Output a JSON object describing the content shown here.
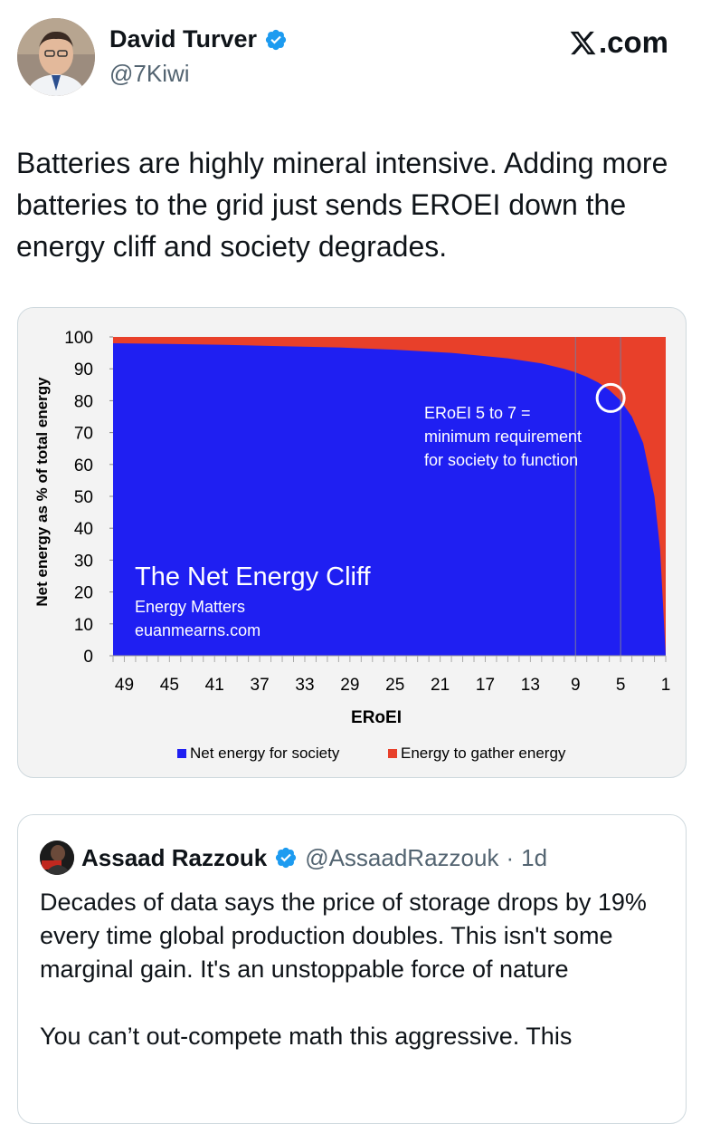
{
  "author": {
    "name": "David Turver",
    "handle": "@7Kiwi",
    "verified": true
  },
  "brand": {
    "logo_text": ".com",
    "icon": "x-logo-icon"
  },
  "tweet": {
    "text": "Batteries are highly mineral intensive. Adding more batteries to the grid just sends EROEI down the energy cliff and society degrades."
  },
  "chart_data": {
    "type": "area",
    "title": "The Net Energy Cliff",
    "subtitle_lines": [
      "Energy Matters",
      "euanmearns.com"
    ],
    "xlabel": "ERoEI",
    "ylabel": "Net energy as % of total energy",
    "x_reversed": true,
    "x_tick_labels": [
      "49",
      "45",
      "41",
      "37",
      "33",
      "29",
      "25",
      "21",
      "17",
      "13",
      "9",
      "5",
      "1"
    ],
    "y_tick_labels": [
      "0",
      "10",
      "20",
      "30",
      "40",
      "50",
      "60",
      "70",
      "80",
      "90",
      "100"
    ],
    "xlim": [
      50,
      1
    ],
    "ylim": [
      0,
      100
    ],
    "series": [
      {
        "name": "Net energy for society",
        "color": "#1f1ff2",
        "x": [
          50,
          45,
          40,
          35,
          30,
          25,
          20,
          15,
          12,
          10,
          9,
          8,
          7,
          6,
          5,
          4,
          3,
          2,
          1.5,
          1
        ],
        "values": [
          98.0,
          97.8,
          97.5,
          97.1,
          96.7,
          96.0,
          95.0,
          93.3,
          91.7,
          90.0,
          88.9,
          87.5,
          85.7,
          83.3,
          80.0,
          75.0,
          66.7,
          50.0,
          33.3,
          0
        ]
      },
      {
        "name": "Energy to gather energy",
        "color": "#e8402a",
        "x": [
          50,
          1
        ],
        "values": [
          100,
          100
        ]
      }
    ],
    "reference_lines_x": [
      9,
      5
    ],
    "annotation": {
      "lines": [
        "ERoEI 5 to 7 =",
        "minimum requirement",
        "for society to function"
      ],
      "circle_x": 5,
      "circle_y": 80
    },
    "legend_placement": "bottom"
  },
  "quote": {
    "name": "Assaad Razzouk",
    "handle": "@AssaadRazzouk",
    "separator": "·",
    "time": "1d",
    "verified": true,
    "text": "Decades of data says the price of storage drops by 19% every time global production doubles. This isn't some marginal gain. It's an unstoppable force of nature\n\nYou can’t out-compete math this aggressive. This"
  }
}
